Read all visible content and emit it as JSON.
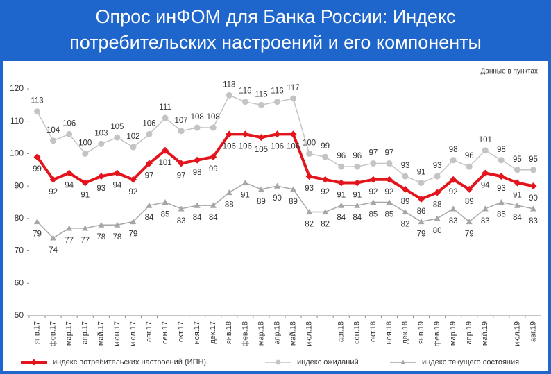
{
  "chart_data": {
    "type": "line",
    "title": "Опрос инФОМ для Банка России: Индекс потребительских настроений и его компоненты",
    "annotation": "Данные в пунктах",
    "categories": [
      "янв.17",
      "фев.17",
      "мар.17",
      "апр.17",
      "май.17",
      "июн.17",
      "июл.17",
      "авг.17",
      "сен.17",
      "окт.17",
      "ноя.17",
      "дек.17",
      "янв.18",
      "фев.18",
      "мар.18",
      "апр.18",
      "май.18",
      "июл.18",
      null,
      "авг.18",
      "сен.18",
      "окт.18",
      "ноя.18",
      "дек.18",
      "янв.19",
      "фев.19",
      "мар.19",
      "апр.19",
      "май.19",
      null,
      "июл.19",
      "авг.19"
    ],
    "series": [
      {
        "name": "индекс потребительских настроений (ИПН)",
        "color": "#e3141c",
        "marker": "diamond",
        "values": [
          99,
          92,
          94,
          91,
          93,
          94,
          92,
          97,
          101,
          97,
          98,
          99,
          106,
          106,
          105,
          106,
          106,
          93,
          92,
          91,
          91,
          92,
          92,
          89,
          86,
          88,
          92,
          89,
          94,
          93,
          91,
          90
        ]
      },
      {
        "name": "индекс ожиданий",
        "color": "#c4c4c4",
        "marker": "circle",
        "values": [
          113,
          104,
          106,
          100,
          103,
          105,
          102,
          106,
          111,
          107,
          108,
          108,
          118,
          116,
          115,
          116,
          117,
          100,
          99,
          96,
          96,
          97,
          97,
          93,
          91,
          93,
          98,
          96,
          101,
          98,
          95,
          95
        ]
      },
      {
        "name": "индекс текущего состояния",
        "color": "#a6a6a6",
        "marker": "triangle",
        "values": [
          79,
          74,
          77,
          77,
          78,
          78,
          79,
          84,
          85,
          83,
          84,
          84,
          88,
          91,
          89,
          90,
          89,
          82,
          82,
          84,
          84,
          85,
          85,
          82,
          79,
          80,
          83,
          79,
          83,
          85,
          84,
          83
        ]
      }
    ],
    "ylim": [
      50,
      120
    ],
    "yticks": [
      50,
      60,
      70,
      80,
      90,
      100,
      110,
      120
    ]
  }
}
